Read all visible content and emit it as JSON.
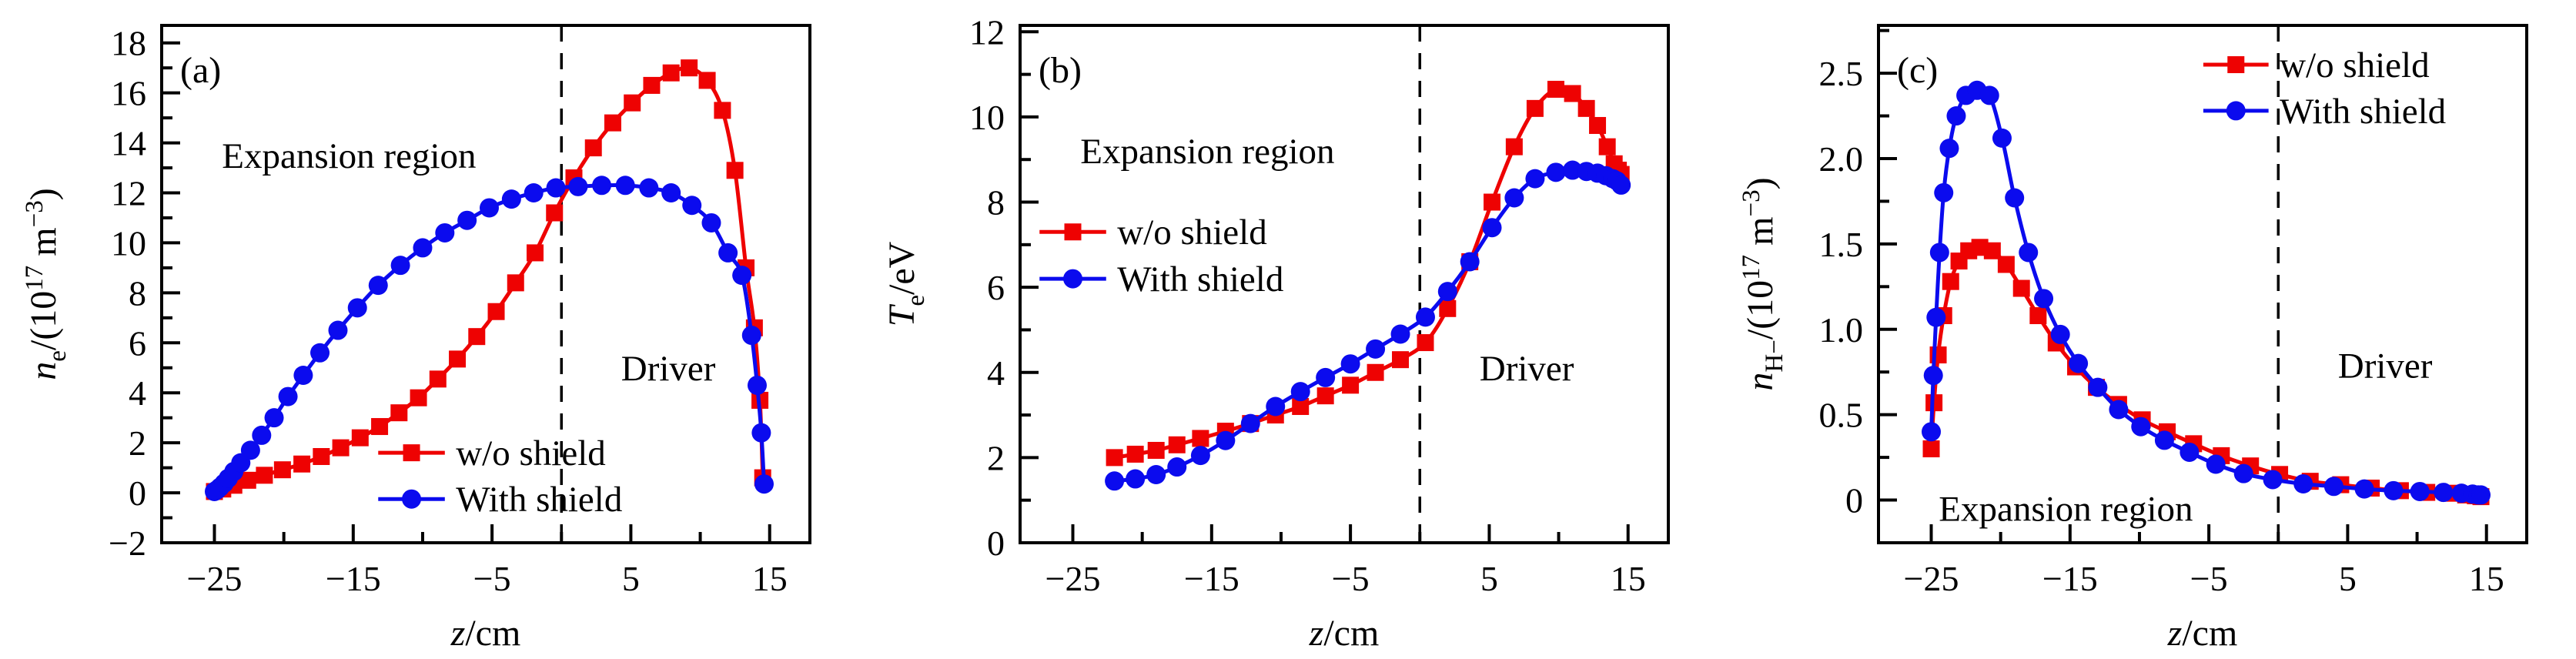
{
  "figure": {
    "background": "#ffffff",
    "axis_color": "#000000",
    "series_colors": {
      "without_shield": "#ee0202",
      "with_shield": "#0b0bee"
    },
    "xlabel": "z/cm",
    "region_labels": [
      "Expansion region",
      "Driver"
    ],
    "legend_labels": [
      "w/o shield",
      "With shield"
    ]
  },
  "chart_data": [
    {
      "type": "line",
      "panel_label": "(a)",
      "ylabel": "n_e/(10^17 m^-3)",
      "ylabel_segments": [
        {
          "t": "n",
          "i": 1
        },
        {
          "t": "e",
          "sub": 1
        },
        {
          "t": "/(10"
        },
        {
          "t": "17",
          "sup": 1
        },
        {
          "t": " m"
        },
        {
          "t": "−3",
          "sup": 1
        },
        {
          "t": ")"
        }
      ],
      "xlabel": "z/cm",
      "xlabel_segments": [
        {
          "t": "z",
          "i": 1
        },
        {
          "t": "/cm"
        }
      ],
      "xlim": [
        -28.8,
        17.9
      ],
      "ylim": [
        -2,
        18.7
      ],
      "xticks": {
        "values": [
          -25,
          -20,
          -15,
          -10,
          -5,
          0,
          5,
          10,
          15
        ],
        "labels": [
          "−25",
          "",
          "−15",
          "",
          "−5",
          "",
          "5",
          "",
          "15"
        ]
      },
      "yticks": {
        "values": [
          -2,
          -1,
          0,
          1,
          2,
          3,
          4,
          5,
          6,
          7,
          8,
          9,
          10,
          11,
          12,
          13,
          14,
          15,
          16,
          17,
          18
        ],
        "labels": [
          "−2",
          "",
          "0",
          "",
          "2",
          "",
          "4",
          "",
          "6",
          "",
          "8",
          "",
          "10",
          "",
          "12",
          "",
          "14",
          "",
          "16",
          "",
          "18"
        ]
      },
      "dashed_x": 0,
      "annotations": [
        {
          "name": "expansion-region",
          "text": "Expansion region",
          "x": -15.3,
          "y": 13.5
        },
        {
          "name": "driver",
          "text": "Driver",
          "x": 7.7,
          "y": 5.0
        }
      ],
      "legend": {
        "line_x": [
          -13.2,
          -8.4
        ],
        "text_x": -7.6,
        "rows": [
          {
            "label": "w/o shield",
            "series": 0,
            "y": 1.6
          },
          {
            "label": "With shield",
            "series": 1,
            "y": -0.25
          }
        ]
      },
      "series": [
        {
          "name": "w/o shield",
          "color": "#ee0202",
          "marker": "square",
          "x": [
            -25,
            -24.4,
            -23.6,
            -22.6,
            -21.4,
            -20.1,
            -18.7,
            -17.3,
            -15.9,
            -14.5,
            -13.1,
            -11.7,
            -10.3,
            -8.9,
            -7.5,
            -6.1,
            -4.7,
            -3.3,
            -1.9,
            -0.5,
            0.9,
            2.3,
            3.7,
            5.1,
            6.5,
            7.9,
            9.2,
            10.5,
            11.6,
            12.5,
            13.3,
            13.9,
            14.3,
            14.5
          ],
          "y": [
            0.05,
            0.15,
            0.3,
            0.5,
            0.7,
            0.92,
            1.15,
            1.45,
            1.8,
            2.2,
            2.65,
            3.2,
            3.8,
            4.55,
            5.35,
            6.25,
            7.25,
            8.4,
            9.6,
            11.2,
            12.6,
            13.8,
            14.8,
            15.6,
            16.3,
            16.8,
            17.0,
            16.5,
            15.3,
            12.9,
            9.0,
            6.6,
            3.7,
            0.6
          ]
        },
        {
          "name": "With shield",
          "color": "#0b0bee",
          "marker": "circle",
          "x": [
            -25,
            -24.8,
            -24.6,
            -24.3,
            -24,
            -23.6,
            -23.1,
            -22.4,
            -21.6,
            -20.7,
            -19.7,
            -18.6,
            -17.4,
            -16.1,
            -14.7,
            -13.2,
            -11.6,
            -10,
            -8.4,
            -6.8,
            -5.2,
            -3.6,
            -2,
            -0.4,
            1.2,
            2.9,
            4.6,
            6.3,
            7.9,
            9.4,
            10.8,
            12,
            13,
            13.7,
            14.1,
            14.4,
            14.6
          ],
          "y": [
            0.05,
            0.12,
            0.22,
            0.38,
            0.58,
            0.85,
            1.2,
            1.7,
            2.3,
            3.0,
            3.85,
            4.7,
            5.6,
            6.5,
            7.4,
            8.3,
            9.1,
            9.8,
            10.4,
            10.9,
            11.4,
            11.75,
            12.0,
            12.2,
            12.25,
            12.3,
            12.3,
            12.2,
            12.0,
            11.5,
            10.8,
            9.6,
            8.7,
            6.3,
            4.3,
            2.4,
            0.35
          ]
        }
      ]
    },
    {
      "type": "line",
      "panel_label": "(b)",
      "ylabel": "T_e/eV",
      "ylabel_segments": [
        {
          "t": "T",
          "i": 1
        },
        {
          "t": "e",
          "sub": 1
        },
        {
          "t": "/eV"
        }
      ],
      "xlabel": "z/cm",
      "xlabel_segments": [
        {
          "t": "z",
          "i": 1
        },
        {
          "t": "/cm"
        }
      ],
      "xlim": [
        -28.8,
        17.9
      ],
      "ylim": [
        0,
        12.15
      ],
      "xticks": {
        "values": [
          -25,
          -20,
          -15,
          -10,
          -5,
          0,
          5,
          10,
          15
        ],
        "labels": [
          "−25",
          "",
          "−15",
          "",
          "−5",
          "",
          "5",
          "",
          "15"
        ]
      },
      "yticks": {
        "values": [
          0,
          1,
          2,
          3,
          4,
          5,
          6,
          7,
          8,
          9,
          10,
          11,
          12
        ],
        "labels": [
          "0",
          "",
          "2",
          "",
          "4",
          "",
          "6",
          "",
          "8",
          "",
          "10",
          "",
          "12"
        ]
      },
      "dashed_x": 0,
      "annotations": [
        {
          "name": "expansion-region",
          "text": "Expansion region",
          "x": -15.3,
          "y": 9.2
        },
        {
          "name": "driver",
          "text": "Driver",
          "x": 7.7,
          "y": 4.1
        }
      ],
      "legend": {
        "line_x": [
          -27.4,
          -22.6
        ],
        "text_x": -21.8,
        "rows": [
          {
            "label": "w/o shield",
            "series": 0,
            "y": 7.3
          },
          {
            "label": "With shield",
            "series": 1,
            "y": 6.2
          }
        ]
      },
      "series": [
        {
          "name": "w/o shield",
          "color": "#ee0202",
          "marker": "square",
          "x": [
            -22,
            -20.5,
            -19,
            -17.5,
            -15.8,
            -14,
            -12.2,
            -10.4,
            -8.6,
            -6.8,
            -5,
            -3.2,
            -1.4,
            0.4,
            2,
            3.6,
            5.2,
            6.8,
            8.3,
            9.8,
            11,
            12,
            12.8,
            13.5,
            14,
            14.3,
            14.5
          ],
          "y": [
            2.0,
            2.08,
            2.17,
            2.3,
            2.45,
            2.62,
            2.8,
            3.0,
            3.2,
            3.45,
            3.7,
            4.0,
            4.3,
            4.7,
            5.5,
            6.6,
            8.0,
            9.3,
            10.2,
            10.65,
            10.55,
            10.2,
            9.8,
            9.3,
            8.9,
            8.75,
            8.65
          ]
        },
        {
          "name": "With shield",
          "color": "#0b0bee",
          "marker": "circle",
          "x": [
            -22,
            -20.5,
            -19,
            -17.5,
            -15.8,
            -14,
            -12.2,
            -10.4,
            -8.6,
            -6.8,
            -5,
            -3.2,
            -1.4,
            0.4,
            2,
            3.6,
            5.2,
            6.8,
            8.3,
            9.8,
            11,
            12,
            12.8,
            13.4,
            13.9,
            14.2,
            14.5
          ],
          "y": [
            1.45,
            1.5,
            1.6,
            1.78,
            2.05,
            2.4,
            2.8,
            3.2,
            3.55,
            3.88,
            4.2,
            4.55,
            4.9,
            5.3,
            5.9,
            6.6,
            7.4,
            8.1,
            8.55,
            8.7,
            8.75,
            8.72,
            8.68,
            8.62,
            8.55,
            8.5,
            8.4
          ]
        }
      ]
    },
    {
      "type": "line",
      "panel_label": "(c)",
      "ylabel": "n_H-/(10^17 m^-3)",
      "ylabel_segments": [
        {
          "t": "n",
          "i": 1
        },
        {
          "t": "H−",
          "sub": 1
        },
        {
          "t": "/(10"
        },
        {
          "t": "17",
          "sup": 1
        },
        {
          "t": " m"
        },
        {
          "t": "−3",
          "sup": 1
        },
        {
          "t": ")"
        }
      ],
      "xlabel": "z/cm",
      "xlabel_segments": [
        {
          "t": "z",
          "i": 1
        },
        {
          "t": "/cm"
        }
      ],
      "xlim": [
        -28.8,
        17.9
      ],
      "ylim": [
        -0.25,
        2.78
      ],
      "xticks": {
        "values": [
          -25,
          -20,
          -15,
          -10,
          -5,
          0,
          5,
          10,
          15
        ],
        "labels": [
          "−25",
          "",
          "−15",
          "",
          "−5",
          "",
          "5",
          "",
          "15"
        ]
      },
      "yticks": {
        "values": [
          0,
          0.25,
          0.5,
          0.75,
          1,
          1.25,
          1.5,
          1.75,
          2,
          2.25,
          2.5,
          2.75
        ],
        "labels": [
          "0",
          "",
          "0.5",
          "",
          "1.0",
          "",
          "1.5",
          "",
          "2.0",
          "",
          "2.5",
          ""
        ]
      },
      "dashed_x": 0,
      "annotations": [
        {
          "name": "expansion-region",
          "text": "Expansion region",
          "x": -15.3,
          "y": -0.05
        },
        {
          "name": "driver",
          "text": "Driver",
          "x": 7.7,
          "y": 0.79
        }
      ],
      "legend": {
        "line_x": [
          -5.4,
          -0.7
        ],
        "text_x": 0.1,
        "rows": [
          {
            "label": "w/o shield",
            "series": 0,
            "y": 2.55
          },
          {
            "label": "With shield",
            "series": 1,
            "y": 2.28
          }
        ]
      },
      "series": [
        {
          "name": "w/o shield",
          "color": "#ee0202",
          "marker": "square",
          "x": [
            -25,
            -24.8,
            -24.5,
            -24.1,
            -23.6,
            -23,
            -22.3,
            -21.5,
            -20.6,
            -19.6,
            -18.5,
            -17.3,
            -16,
            -14.6,
            -13.1,
            -11.5,
            -9.8,
            -8,
            -6.1,
            -4.1,
            -2,
            0.1,
            2.3,
            4.5,
            6.7,
            8.8,
            10.7,
            12.3,
            13.5,
            14.2,
            14.6
          ],
          "y": [
            0.3,
            0.57,
            0.85,
            1.08,
            1.28,
            1.4,
            1.46,
            1.48,
            1.46,
            1.38,
            1.24,
            1.08,
            0.92,
            0.78,
            0.66,
            0.56,
            0.47,
            0.4,
            0.33,
            0.26,
            0.2,
            0.15,
            0.11,
            0.09,
            0.07,
            0.055,
            0.045,
            0.04,
            0.03,
            0.025,
            0.02
          ]
        },
        {
          "name": "With shield",
          "color": "#0b0bee",
          "marker": "circle",
          "x": [
            -25,
            -24.85,
            -24.65,
            -24.4,
            -24.1,
            -23.7,
            -23.2,
            -22.5,
            -21.7,
            -20.8,
            -19.9,
            -19,
            -18,
            -16.9,
            -15.7,
            -14.4,
            -13,
            -11.5,
            -9.9,
            -8.2,
            -6.4,
            -4.5,
            -2.5,
            -0.4,
            1.8,
            4,
            6.2,
            8.3,
            10.2,
            11.9,
            13.2,
            14,
            14.4,
            14.6
          ],
          "y": [
            0.4,
            0.73,
            1.07,
            1.45,
            1.8,
            2.06,
            2.25,
            2.37,
            2.4,
            2.37,
            2.12,
            1.77,
            1.45,
            1.18,
            0.97,
            0.8,
            0.66,
            0.53,
            0.43,
            0.35,
            0.28,
            0.21,
            0.155,
            0.12,
            0.095,
            0.08,
            0.065,
            0.055,
            0.05,
            0.045,
            0.04,
            0.035,
            0.03,
            0.03
          ]
        }
      ]
    }
  ]
}
